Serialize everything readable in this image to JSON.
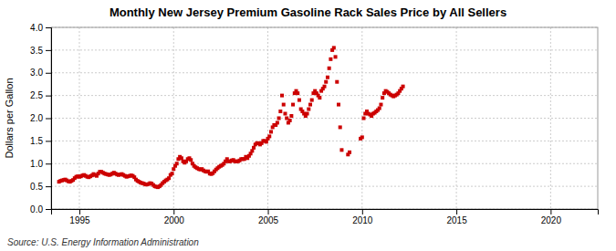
{
  "chart_data": {
    "type": "scatter",
    "title": "Monthly New Jersey Premium Gasoline Rack Sales Price by All Sellers",
    "ylabel": "Dollars per Gallon",
    "annotations": [
      "Source: U.S. Energy Information Administration"
    ],
    "color": "#cc0000",
    "marker": "square",
    "grid": true,
    "xlim": [
      1993.5,
      2022.5
    ],
    "ylim": [
      0.0,
      4.0
    ],
    "xticks": [
      1995,
      2000,
      2005,
      2010,
      2015,
      2020
    ],
    "yticks": [
      {
        "value": 0.0,
        "label": "0.0"
      },
      0.5,
      {
        "value": 1.0,
        "label": "1.0"
      },
      1.5,
      {
        "value": 2.0,
        "label": "2.0"
      },
      2.5,
      {
        "value": 3.0,
        "label": "3.0"
      },
      3.5,
      {
        "value": 4.0,
        "label": "4.0"
      }
    ],
    "x": [
      1993.917,
      1994.0,
      1994.083,
      1994.167,
      1994.25,
      1994.333,
      1994.417,
      1994.5,
      1994.583,
      1994.667,
      1994.75,
      1994.833,
      1994.917,
      1995.0,
      1995.083,
      1995.167,
      1995.25,
      1995.333,
      1995.417,
      1995.5,
      1995.583,
      1995.667,
      1995.75,
      1995.833,
      1995.917,
      1996.0,
      1996.083,
      1996.167,
      1996.25,
      1996.333,
      1996.417,
      1996.5,
      1996.583,
      1996.667,
      1996.75,
      1996.833,
      1996.917,
      1997.0,
      1997.083,
      1997.167,
      1997.25,
      1997.333,
      1997.417,
      1997.5,
      1997.583,
      1997.667,
      1997.75,
      1997.833,
      1997.917,
      1998.0,
      1998.083,
      1998.167,
      1998.25,
      1998.333,
      1998.417,
      1998.5,
      1998.583,
      1998.667,
      1998.75,
      1998.833,
      1998.917,
      1999.0,
      1999.083,
      1999.167,
      1999.25,
      1999.333,
      1999.417,
      1999.5,
      1999.583,
      1999.667,
      1999.75,
      1999.833,
      1999.917,
      2000.0,
      2000.083,
      2000.167,
      2000.25,
      2000.333,
      2000.417,
      2000.5,
      2000.583,
      2000.667,
      2000.75,
      2000.833,
      2000.917,
      2001.0,
      2001.083,
      2001.167,
      2001.25,
      2001.333,
      2001.417,
      2001.5,
      2001.583,
      2001.667,
      2001.75,
      2001.833,
      2001.917,
      2002.0,
      2002.083,
      2002.167,
      2002.25,
      2002.333,
      2002.417,
      2002.5,
      2002.583,
      2002.667,
      2002.75,
      2002.833,
      2002.917,
      2003.0,
      2003.083,
      2003.167,
      2003.25,
      2003.333,
      2003.417,
      2003.5,
      2003.583,
      2003.667,
      2003.75,
      2003.833,
      2003.917,
      2004.0,
      2004.083,
      2004.167,
      2004.25,
      2004.333,
      2004.417,
      2004.5,
      2004.583,
      2004.667,
      2004.75,
      2004.833,
      2004.917,
      2005.0,
      2005.083,
      2005.167,
      2005.25,
      2005.333,
      2005.417,
      2005.5,
      2005.583,
      2005.667,
      2005.75,
      2005.833,
      2005.917,
      2006.0,
      2006.083,
      2006.167,
      2006.25,
      2006.333,
      2006.417,
      2006.5,
      2006.583,
      2006.667,
      2006.75,
      2006.833,
      2006.917,
      2007.0,
      2007.083,
      2007.167,
      2007.25,
      2007.333,
      2007.417,
      2007.5,
      2007.583,
      2007.667,
      2007.75,
      2007.833,
      2007.917,
      2008.0,
      2008.083,
      2008.167,
      2008.25,
      2008.333,
      2008.417,
      2008.5,
      2008.583,
      2008.667,
      2008.75,
      2008.833,
      2008.917,
      2009.25,
      2009.333,
      2009.917,
      2010.0,
      2010.083,
      2010.167,
      2010.25,
      2010.333,
      2010.417,
      2010.5,
      2010.583,
      2010.667,
      2010.75,
      2010.833,
      2010.917,
      2011.0,
      2011.083,
      2011.167,
      2011.25,
      2011.333,
      2011.417,
      2011.5,
      2011.583,
      2011.667,
      2011.75,
      2011.833,
      2011.917,
      2012.0,
      2012.083,
      2012.167
    ],
    "values": [
      0.6,
      0.62,
      0.63,
      0.64,
      0.65,
      0.63,
      0.61,
      0.6,
      0.62,
      0.64,
      0.68,
      0.71,
      0.72,
      0.71,
      0.72,
      0.74,
      0.75,
      0.73,
      0.71,
      0.7,
      0.72,
      0.74,
      0.77,
      0.75,
      0.73,
      0.78,
      0.82,
      0.82,
      0.8,
      0.78,
      0.77,
      0.76,
      0.75,
      0.76,
      0.78,
      0.8,
      0.78,
      0.76,
      0.75,
      0.76,
      0.77,
      0.75,
      0.73,
      0.71,
      0.72,
      0.73,
      0.74,
      0.73,
      0.7,
      0.65,
      0.62,
      0.6,
      0.58,
      0.57,
      0.56,
      0.54,
      0.54,
      0.55,
      0.57,
      0.56,
      0.53,
      0.5,
      0.49,
      0.48,
      0.5,
      0.53,
      0.57,
      0.6,
      0.63,
      0.65,
      0.68,
      0.75,
      0.78,
      0.88,
      0.95,
      1.0,
      1.1,
      1.15,
      1.12,
      1.05,
      1.02,
      1.05,
      1.1,
      1.12,
      1.08,
      1.0,
      0.95,
      0.92,
      0.9,
      0.88,
      0.87,
      0.88,
      0.85,
      0.83,
      0.82,
      0.83,
      0.78,
      0.77,
      0.79,
      0.83,
      0.87,
      0.9,
      0.93,
      0.95,
      0.97,
      1.0,
      1.05,
      1.1,
      1.05,
      1.05,
      1.07,
      1.08,
      1.05,
      1.05,
      1.05,
      1.07,
      1.1,
      1.1,
      1.1,
      1.15,
      1.12,
      1.17,
      1.22,
      1.28,
      1.35,
      1.42,
      1.45,
      1.45,
      1.42,
      1.45,
      1.5,
      1.5,
      1.48,
      1.55,
      1.6,
      1.7,
      1.8,
      1.85,
      1.85,
      1.9,
      2.0,
      2.15,
      2.5,
      2.3,
      2.1,
      2.0,
      1.9,
      1.95,
      2.05,
      2.3,
      2.55,
      2.6,
      2.55,
      2.4,
      2.2,
      2.15,
      2.1,
      2.05,
      2.1,
      2.2,
      2.3,
      2.4,
      2.55,
      2.6,
      2.55,
      2.5,
      2.45,
      2.6,
      2.65,
      2.7,
      2.8,
      2.9,
      3.1,
      3.3,
      3.5,
      3.55,
      3.35,
      2.8,
      2.3,
      1.8,
      1.3,
      1.2,
      1.25,
      1.55,
      1.58,
      2.0,
      2.1,
      2.15,
      2.1,
      2.08,
      2.05,
      2.1,
      2.12,
      2.15,
      2.18,
      2.22,
      2.3,
      2.45,
      2.55,
      2.6,
      2.58,
      2.55,
      2.52,
      2.5,
      2.48,
      2.5,
      2.52,
      2.55,
      2.6,
      2.65,
      2.7
    ]
  }
}
